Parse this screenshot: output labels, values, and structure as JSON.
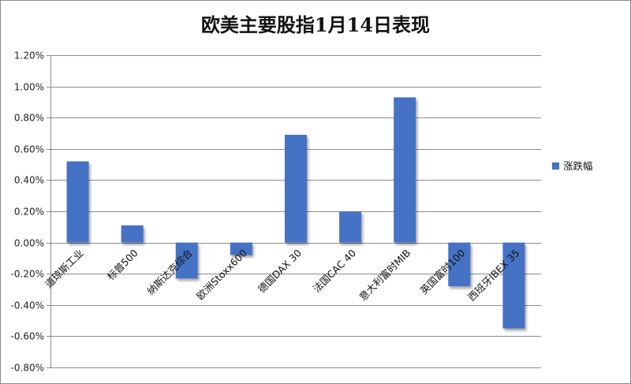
{
  "chart_data": {
    "type": "bar",
    "title": "欧美主要股指1月14日表现",
    "categories": [
      "道琼斯工业",
      "标普500",
      "纳斯达克综合",
      "欧洲Stoxx600",
      "德国DAX 30",
      "法国CAC 40",
      "意大利富时MIB",
      "英国富时100",
      "西班牙IBEX 35"
    ],
    "series": [
      {
        "name": "涨跌幅",
        "values": [
          0.0052,
          0.0011,
          -0.0023,
          -0.0008,
          0.0069,
          0.002,
          0.0093,
          -0.0028,
          -0.0055
        ],
        "color": "#4472C4"
      }
    ],
    "ylim": [
      -0.008,
      0.012
    ],
    "yticks": [
      -0.008,
      -0.006,
      -0.004,
      -0.002,
      0.0,
      0.002,
      0.004,
      0.006,
      0.008,
      0.01,
      0.012
    ],
    "ytick_labels": [
      "-0.80%",
      "-0.60%",
      "-0.40%",
      "-0.20%",
      "0.00%",
      "0.20%",
      "0.40%",
      "0.60%",
      "0.80%",
      "1.00%",
      "1.20%"
    ],
    "grid": true,
    "legend_position": "right",
    "xlabel": "",
    "ylabel": ""
  }
}
